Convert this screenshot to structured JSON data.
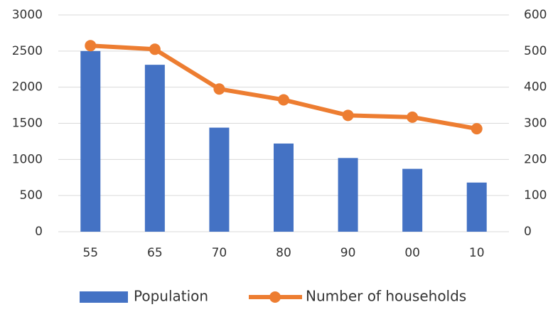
{
  "chart_data": {
    "type": "bar-line",
    "categories": [
      "55",
      "65",
      "70",
      "80",
      "90",
      "00",
      "10"
    ],
    "series": [
      {
        "name": "Population",
        "color": "#4472c4",
        "type": "bar",
        "values": [
          2500,
          2310,
          1440,
          1220,
          1020,
          870,
          680
        ]
      },
      {
        "name": "Number of households",
        "color": "#ed7d31",
        "type": "line",
        "axis": "y2",
        "values": [
          515,
          505,
          395,
          365,
          322,
          317,
          285
        ]
      }
    ],
    "ylim": [
      0,
      3000
    ],
    "yticks": [
      0,
      500,
      1000,
      1500,
      2000,
      2500,
      3000
    ],
    "y2lim": [
      0,
      600
    ],
    "y2ticks": [
      0,
      100,
      200,
      300,
      400,
      500,
      600
    ],
    "grid": true,
    "legend": "bottom"
  }
}
